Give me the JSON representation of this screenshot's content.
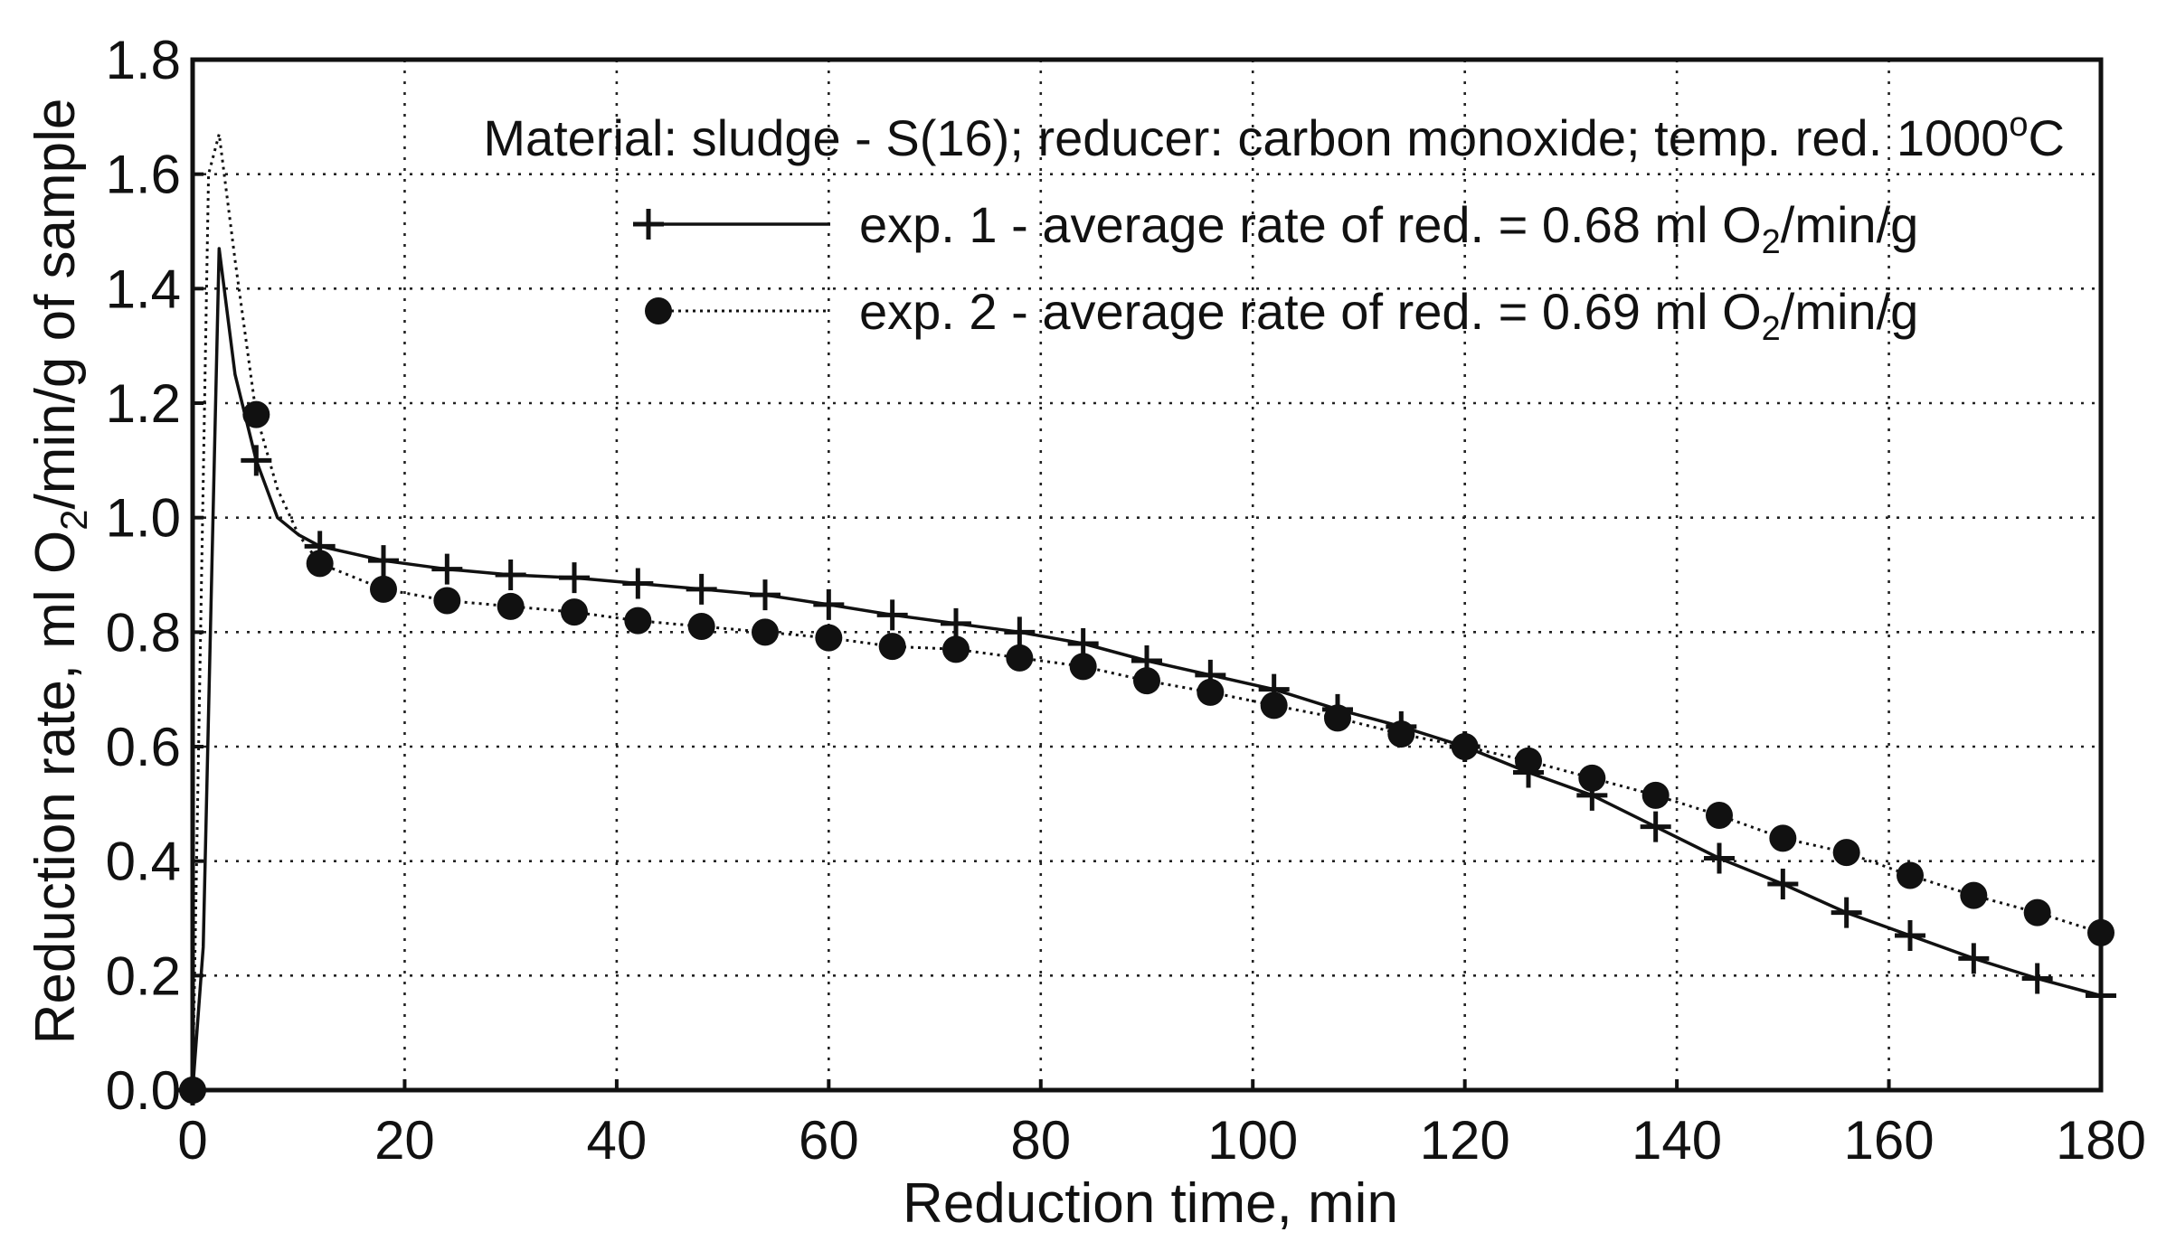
{
  "chart_data": {
    "type": "line",
    "title": "",
    "xlabel": "Reduction time, min",
    "ylabel_parts": {
      "pre": "Reduction rate, ml O",
      "sub": "2",
      "post": "/min/g of sample"
    },
    "xlim": [
      0,
      180
    ],
    "ylim": [
      0,
      1.8
    ],
    "x_ticks": [
      "0",
      "20",
      "40",
      "60",
      "80",
      "100",
      "120",
      "140",
      "160",
      "180"
    ],
    "y_ticks": [
      "0.0",
      "0.2",
      "0.4",
      "0.6",
      "0.8",
      "1.0",
      "1.2",
      "1.4",
      "1.6",
      "1.8"
    ],
    "grid": true,
    "legend_position": "top-right",
    "annotation": {
      "pre": "Material: sludge - S(16); reducer: carbon monoxide; temp. red. 1000",
      "sup": "o",
      "post": "C"
    },
    "series": [
      {
        "name_parts": {
          "pre": "exp. 1  -  average rate of red. = 0.68 ml O",
          "sub": "2",
          "post": "/min/g"
        },
        "line_style": "solid",
        "marker": "plus",
        "line_x": [
          0,
          1,
          2.5,
          4,
          6,
          8,
          10,
          12,
          18,
          24,
          30,
          36,
          42,
          48,
          54,
          60,
          66,
          72,
          78,
          84,
          90,
          96,
          102,
          108,
          114,
          120,
          126,
          132,
          138,
          144,
          150,
          156,
          162,
          168,
          174,
          180
        ],
        "line_y": [
          0.0,
          0.25,
          1.47,
          1.25,
          1.1,
          1.0,
          0.97,
          0.95,
          0.925,
          0.91,
          0.9,
          0.895,
          0.885,
          0.875,
          0.865,
          0.848,
          0.83,
          0.815,
          0.8,
          0.78,
          0.75,
          0.725,
          0.7,
          0.665,
          0.635,
          0.6,
          0.555,
          0.515,
          0.46,
          0.405,
          0.36,
          0.31,
          0.27,
          0.23,
          0.195,
          0.165
        ],
        "marker_x": [
          0,
          6,
          12,
          18,
          24,
          30,
          36,
          42,
          48,
          54,
          60,
          66,
          72,
          78,
          84,
          90,
          96,
          102,
          108,
          114,
          120,
          126,
          132,
          138,
          144,
          150,
          156,
          162,
          168,
          174,
          180
        ],
        "marker_y": [
          0.0,
          1.1,
          0.95,
          0.925,
          0.91,
          0.9,
          0.895,
          0.885,
          0.875,
          0.865,
          0.848,
          0.83,
          0.815,
          0.8,
          0.78,
          0.75,
          0.725,
          0.7,
          0.665,
          0.635,
          0.6,
          0.555,
          0.515,
          0.46,
          0.405,
          0.36,
          0.31,
          0.27,
          0.23,
          0.195,
          0.165
        ]
      },
      {
        "name_parts": {
          "pre": "exp. 2  -  average rate of red. = 0.69 ml O",
          "sub": "2",
          "post": "/min/g"
        },
        "line_style": "dotted",
        "marker": "circle",
        "line_x": [
          0,
          1.5,
          2.5,
          4,
          6,
          8,
          10,
          12,
          18,
          24,
          30,
          36,
          42,
          48,
          54,
          60,
          66,
          72,
          78,
          84,
          90,
          96,
          102,
          108,
          114,
          120,
          126,
          132,
          138,
          144,
          150,
          156,
          162,
          168,
          174,
          180
        ],
        "line_y": [
          0.0,
          1.6,
          1.67,
          1.45,
          1.18,
          1.05,
          0.97,
          0.92,
          0.875,
          0.855,
          0.845,
          0.835,
          0.82,
          0.81,
          0.8,
          0.79,
          0.775,
          0.77,
          0.755,
          0.74,
          0.715,
          0.695,
          0.672,
          0.65,
          0.622,
          0.6,
          0.575,
          0.545,
          0.515,
          0.48,
          0.44,
          0.415,
          0.375,
          0.34,
          0.31,
          0.275
        ],
        "marker_x": [
          0,
          6,
          12,
          18,
          24,
          30,
          36,
          42,
          48,
          54,
          60,
          66,
          72,
          78,
          84,
          90,
          96,
          102,
          108,
          114,
          120,
          126,
          132,
          138,
          144,
          150,
          156,
          162,
          168,
          174,
          180
        ],
        "marker_y": [
          0.0,
          1.18,
          0.92,
          0.875,
          0.855,
          0.845,
          0.835,
          0.82,
          0.81,
          0.8,
          0.79,
          0.775,
          0.77,
          0.755,
          0.74,
          0.715,
          0.695,
          0.672,
          0.65,
          0.622,
          0.6,
          0.575,
          0.545,
          0.515,
          0.48,
          0.44,
          0.415,
          0.375,
          0.34,
          0.31,
          0.275
        ]
      }
    ]
  }
}
